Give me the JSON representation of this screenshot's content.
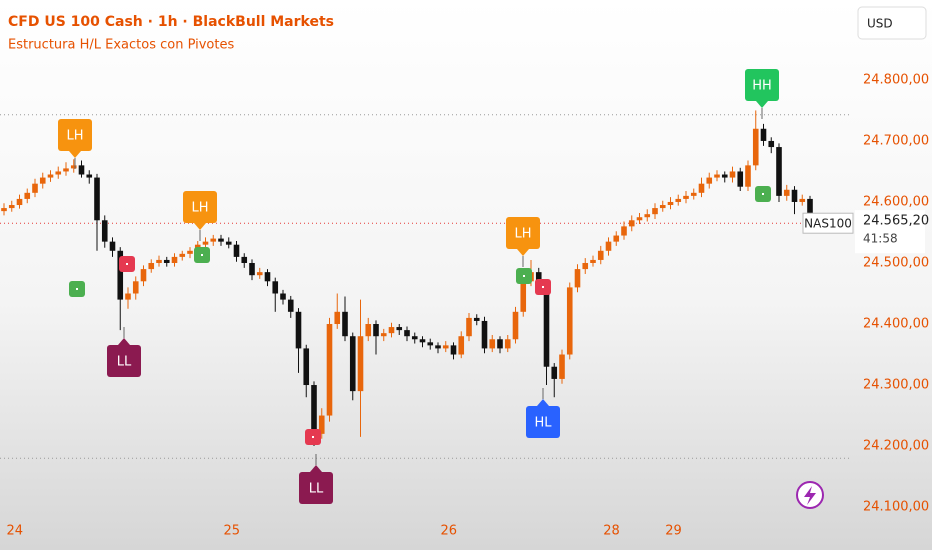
{
  "chart_data": {
    "type": "candlestick",
    "title": "CFD US 100 Cash · 1h · BlackBull Markets",
    "subtitle": "Estructura H/L Exactos con Pivotes",
    "currency": "USD",
    "symbol_label": "NAS100",
    "countdown": "41:58",
    "last_price": {
      "value": 24565.2,
      "label": "24.565,20"
    },
    "levels": [
      24743,
      24180
    ],
    "up_color": "#e8660c",
    "down_color": "#111111",
    "categories": [
      null,
      "24",
      null,
      null,
      null,
      null,
      null,
      null,
      null,
      null,
      null,
      null,
      null,
      null,
      null,
      null,
      null,
      null,
      null,
      null,
      null,
      null,
      null,
      null,
      null,
      null,
      null,
      null,
      null,
      "25",
      null,
      null,
      null,
      null,
      null,
      null,
      null,
      null,
      null,
      null,
      null,
      null,
      null,
      null,
      null,
      null,
      null,
      null,
      null,
      null,
      null,
      null,
      null,
      null,
      null,
      null,
      null,
      "26",
      null,
      null,
      null,
      null,
      null,
      null,
      null,
      null,
      null,
      null,
      null,
      null,
      null,
      null,
      null,
      null,
      null,
      null,
      null,
      null,
      "28",
      null,
      null,
      null,
      null,
      null,
      null,
      null,
      "29",
      null,
      null,
      null,
      null,
      null,
      null,
      null,
      null,
      null,
      null,
      null,
      null,
      null,
      null,
      null,
      null,
      null,
      null
    ],
    "ohlc": [
      [
        24585,
        24598,
        24578,
        24590
      ],
      [
        24590,
        24602,
        24584,
        24595
      ],
      [
        24595,
        24612,
        24589,
        24605
      ],
      [
        24605,
        24622,
        24598,
        24615
      ],
      [
        24615,
        24638,
        24608,
        24630
      ],
      [
        24630,
        24648,
        24622,
        24640
      ],
      [
        24640,
        24652,
        24633,
        24645
      ],
      [
        24645,
        24658,
        24638,
        24650
      ],
      [
        24650,
        24665,
        24643,
        24655
      ],
      [
        24655,
        24670,
        24648,
        24660
      ],
      [
        24660,
        24668,
        24640,
        24645
      ],
      [
        24645,
        24652,
        24630,
        24640
      ],
      [
        24640,
        24646,
        24520,
        24570
      ],
      [
        24570,
        24578,
        24525,
        24535
      ],
      [
        24535,
        24542,
        24510,
        24520
      ],
      [
        24520,
        24526,
        24390,
        24440
      ],
      [
        24440,
        24460,
        24425,
        24450
      ],
      [
        24450,
        24478,
        24440,
        24470
      ],
      [
        24470,
        24496,
        24462,
        24490
      ],
      [
        24490,
        24506,
        24484,
        24500
      ],
      [
        24500,
        24512,
        24494,
        24505
      ],
      [
        24505,
        24510,
        24494,
        24500
      ],
      [
        24500,
        24516,
        24494,
        24510
      ],
      [
        24510,
        24520,
        24504,
        24515
      ],
      [
        24515,
        24526,
        24508,
        24520
      ],
      [
        24520,
        24536,
        24512,
        24530
      ],
      [
        24530,
        24542,
        24524,
        24535
      ],
      [
        24535,
        24546,
        24528,
        24540
      ],
      [
        24540,
        24546,
        24528,
        24535
      ],
      [
        24535,
        24542,
        24524,
        24530
      ],
      [
        24530,
        24536,
        24502,
        24510
      ],
      [
        24510,
        24516,
        24492,
        24500
      ],
      [
        24500,
        24506,
        24472,
        24480
      ],
      [
        24480,
        24492,
        24474,
        24485
      ],
      [
        24485,
        24490,
        24462,
        24470
      ],
      [
        24470,
        24476,
        24420,
        24450
      ],
      [
        24450,
        24456,
        24432,
        24440
      ],
      [
        24440,
        24446,
        24410,
        24420
      ],
      [
        24420,
        24426,
        24320,
        24360
      ],
      [
        24360,
        24366,
        24280,
        24300
      ],
      [
        24300,
        24306,
        24200,
        24220
      ],
      [
        24220,
        24262,
        24212,
        24250
      ],
      [
        24250,
        24410,
        24240,
        24400
      ],
      [
        24400,
        24450,
        24392,
        24420
      ],
      [
        24420,
        24445,
        24372,
        24380
      ],
      [
        24380,
        24386,
        24275,
        24290
      ],
      [
        24290,
        24440,
        24215,
        24380
      ],
      [
        24380,
        24410,
        24372,
        24400
      ],
      [
        24400,
        24406,
        24350,
        24380
      ],
      [
        24380,
        24392,
        24372,
        24385
      ],
      [
        24385,
        24402,
        24378,
        24395
      ],
      [
        24395,
        24400,
        24382,
        24390
      ],
      [
        24390,
        24396,
        24372,
        24380
      ],
      [
        24380,
        24386,
        24368,
        24375
      ],
      [
        24375,
        24380,
        24362,
        24370
      ],
      [
        24370,
        24376,
        24358,
        24365
      ],
      [
        24365,
        24370,
        24352,
        24360
      ],
      [
        24360,
        24372,
        24354,
        24365
      ],
      [
        24365,
        24370,
        24342,
        24350
      ],
      [
        24350,
        24388,
        24344,
        24380
      ],
      [
        24380,
        24418,
        24372,
        24410
      ],
      [
        24410,
        24416,
        24398,
        24405
      ],
      [
        24405,
        24412,
        24352,
        24360
      ],
      [
        24360,
        24382,
        24354,
        24375
      ],
      [
        24375,
        24380,
        24352,
        24360
      ],
      [
        24360,
        24382,
        24354,
        24375
      ],
      [
        24375,
        24428,
        24368,
        24420
      ],
      [
        24420,
        24478,
        24412,
        24470
      ],
      [
        24470,
        24505,
        24462,
        24485
      ],
      [
        24485,
        24492,
        24452,
        24460
      ],
      [
        24460,
        24466,
        24300,
        24330
      ],
      [
        24330,
        24336,
        24280,
        24310
      ],
      [
        24310,
        24358,
        24302,
        24350
      ],
      [
        24350,
        24468,
        24342,
        24460
      ],
      [
        24460,
        24498,
        24452,
        24490
      ],
      [
        24490,
        24508,
        24482,
        24500
      ],
      [
        24500,
        24512,
        24494,
        24505
      ],
      [
        24505,
        24528,
        24498,
        24520
      ],
      [
        24520,
        24542,
        24512,
        24535
      ],
      [
        24535,
        24552,
        24528,
        24545
      ],
      [
        24545,
        24568,
        24538,
        24560
      ],
      [
        24560,
        24578,
        24552,
        24570
      ],
      [
        24570,
        24582,
        24564,
        24575
      ],
      [
        24575,
        24588,
        24568,
        24580
      ],
      [
        24580,
        24598,
        24572,
        24590
      ],
      [
        24590,
        24602,
        24584,
        24595
      ],
      [
        24595,
        24608,
        24588,
        24600
      ],
      [
        24600,
        24612,
        24594,
        24605
      ],
      [
        24605,
        24618,
        24598,
        24610
      ],
      [
        24610,
        24622,
        24604,
        24615
      ],
      [
        24615,
        24640,
        24608,
        24630
      ],
      [
        24630,
        24648,
        24622,
        24640
      ],
      [
        24640,
        24652,
        24634,
        24645
      ],
      [
        24645,
        24650,
        24632,
        24640
      ],
      [
        24640,
        24658,
        24632,
        24650
      ],
      [
        24650,
        24656,
        24618,
        24625
      ],
      [
        24625,
        24668,
        24618,
        24660
      ],
      [
        24660,
        24750,
        24652,
        24720
      ],
      [
        24720,
        24728,
        24692,
        24700
      ],
      [
        24700,
        24706,
        24680,
        24690
      ],
      [
        24690,
        24696,
        24600,
        24610
      ],
      [
        24610,
        24628,
        24602,
        24620
      ],
      [
        24620,
        24626,
        24580,
        24600
      ],
      [
        24600,
        24612,
        24594,
        24605
      ],
      [
        24605,
        24610,
        24560,
        24565
      ]
    ],
    "ylim": [
      24087,
      24931
    ],
    "yticks": [
      {
        "value": 24100,
        "label": "24.100,00"
      },
      {
        "value": 24200,
        "label": "24.200,00"
      },
      {
        "value": 24300,
        "label": "24.300,00"
      },
      {
        "value": 24400,
        "label": "24.400,00"
      },
      {
        "value": 24500,
        "label": "24.500,00"
      },
      {
        "value": 24600,
        "label": "24.600,00"
      },
      {
        "value": 24700,
        "label": "24.700,00"
      },
      {
        "value": 24800,
        "label": "24.800,00"
      }
    ],
    "annotations": [
      {
        "text": "LH",
        "color": "#f7930f"
      },
      {
        "text": "LL",
        "color": "#8b1a50"
      },
      {
        "text": "LH",
        "color": "#f7930f"
      },
      {
        "text": "LL",
        "color": "#8b1a50"
      },
      {
        "text": "LH",
        "color": "#f7930f"
      },
      {
        "text": "HL",
        "color": "#2962ff"
      },
      {
        "text": "HH",
        "color": "#22c55e"
      }
    ]
  }
}
